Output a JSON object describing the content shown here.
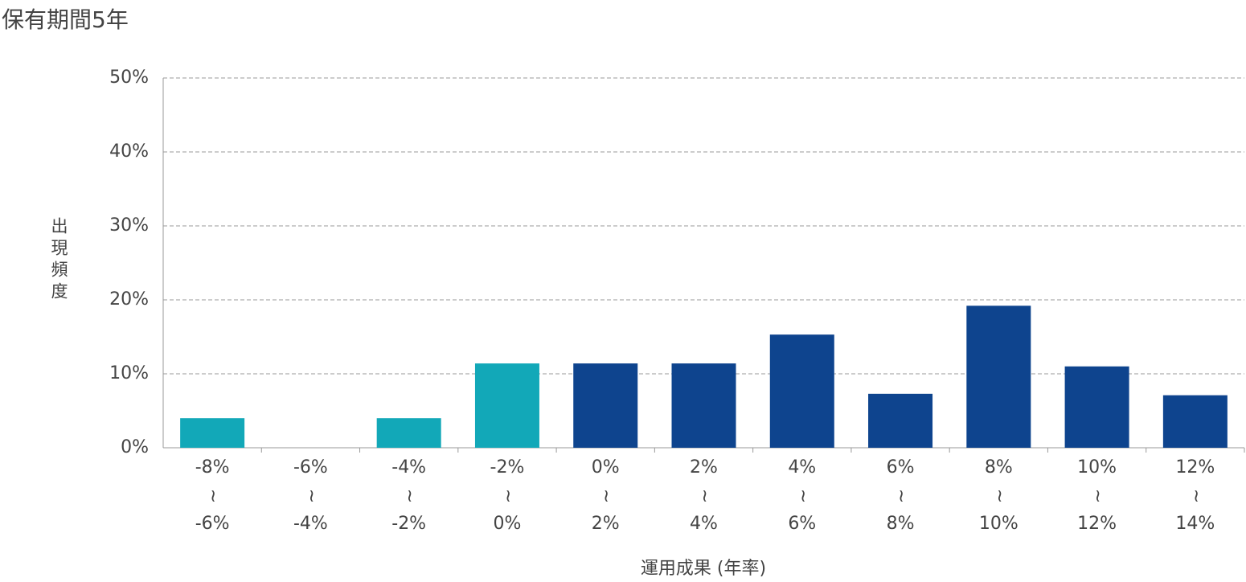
{
  "chart_data": {
    "type": "bar",
    "title": "保有期間5年",
    "y_label": "出現頻度",
    "x_label": "運用成果 (年率)",
    "range_separator": "~",
    "categories": [
      [
        "-8%",
        "-6%"
      ],
      [
        "-6%",
        "-4%"
      ],
      [
        "-4%",
        "-2%"
      ],
      [
        "-2%",
        "0%"
      ],
      [
        "0%",
        "2%"
      ],
      [
        "2%",
        "4%"
      ],
      [
        "4%",
        "6%"
      ],
      [
        "6%",
        "8%"
      ],
      [
        "8%",
        "10%"
      ],
      [
        "10%",
        "12%"
      ],
      [
        "12%",
        "14%"
      ]
    ],
    "values": [
      4.0,
      0,
      4.0,
      11.4,
      11.4,
      11.4,
      15.3,
      7.3,
      19.2,
      11.0,
      7.1
    ],
    "colors": [
      "#12a8b8",
      "#12a8b8",
      "#12a8b8",
      "#12a8b8",
      "#0e448e",
      "#0e448e",
      "#0e448e",
      "#0e448e",
      "#0e448e",
      "#0e448e",
      "#0e448e"
    ],
    "ylim": [
      0,
      50
    ],
    "yticks": [
      {
        "value": 0,
        "label": "0%"
      },
      {
        "value": 10,
        "label": "10%"
      },
      {
        "value": 20,
        "label": "20%"
      },
      {
        "value": 30,
        "label": "30%"
      },
      {
        "value": 40,
        "label": "40%"
      },
      {
        "value": 50,
        "label": "50%"
      }
    ],
    "grid": true
  }
}
